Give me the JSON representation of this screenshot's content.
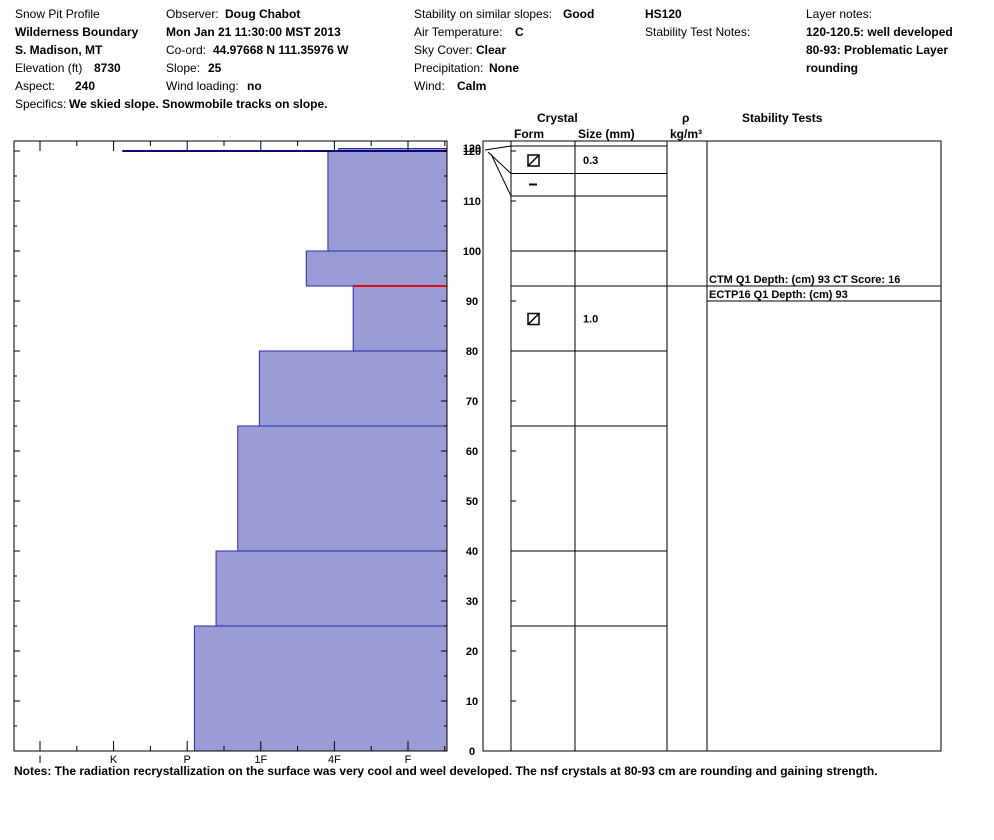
{
  "header": {
    "title": "Snow Pit Profile",
    "location_name": "Wilderness Boundary",
    "region": "S. Madison, MT",
    "elevation_label": "Elevation (ft)",
    "elevation_value": "8730",
    "aspect_label": "Aspect:",
    "aspect_value": "240",
    "specifics_label": "Specifics:",
    "specifics_value": "We skied slope. Snowmobile tracks on slope.",
    "observer_label": "Observer:",
    "observer_value": "Doug Chabot",
    "datetime": "Mon Jan 21 11:30:00 MST 2013",
    "coord_label": "Co-ord:",
    "coord_value": "44.97668 N 111.35976 W",
    "slope_label": "Slope:",
    "slope_value": "25",
    "wind_loading_label": "Wind loading:",
    "wind_loading_value": "no",
    "stability_label": "Stability on similar slopes:",
    "stability_value": "Good",
    "air_temp_label": "Air Temperature:",
    "air_temp_value": "C",
    "sky_label": "Sky Cover:",
    "sky_value": "Clear",
    "precip_label": "Precipitation:",
    "precip_value": "None",
    "wind_label": "Wind:",
    "wind_value": "Calm",
    "hs": "HS120",
    "stability_test_notes_label": "Stability Test Notes:",
    "layer_notes_label": "Layer notes:",
    "layer_notes": [
      "120-120.5: well developed",
      "80-93: Problematic Layer",
      "rounding"
    ]
  },
  "columns": {
    "crystal": "Crystal",
    "form": "Form",
    "size": "Size (mm)",
    "rho": "ρ",
    "density_unit": "kg/m³",
    "stability_tests": "Stability Tests"
  },
  "notes": "Notes:  The radiation recrystallization on the surface was very cool and weel developed.  The nsf crystals at 80-93 cm are rounding and gaining strength.",
  "chart_data": {
    "type": "bar",
    "orientation": "horizontal",
    "description_axis": "hand hardness vs depth",
    "y_axis": {
      "min": 0,
      "max": 120,
      "ticks": [
        0,
        10,
        20,
        30,
        40,
        50,
        60,
        70,
        80,
        90,
        100,
        110,
        120
      ]
    },
    "y_top_label": "120",
    "hardness_ticks": [
      "I",
      "K",
      "P",
      "1F",
      "4F",
      "F"
    ],
    "hardness_scale": "0 = right edge (softest), 6 = left edge (hardest)",
    "layers": [
      {
        "bottom": 120,
        "top": 120.5,
        "hardness": 1.5
      },
      {
        "bottom": 100,
        "top": 120,
        "hardness": 1.65
      },
      {
        "bottom": 93,
        "top": 100,
        "hardness": 1.95
      },
      {
        "bottom": 80,
        "top": 93,
        "hardness": 1.3
      },
      {
        "bottom": 65,
        "top": 80,
        "hardness": 2.6
      },
      {
        "bottom": 40,
        "top": 65,
        "hardness": 2.9
      },
      {
        "bottom": 25,
        "top": 40,
        "hardness": 3.2
      },
      {
        "bottom": 0,
        "top": 25,
        "hardness": 3.5
      }
    ],
    "flat_layer": {
      "depth": 120,
      "hardness": 4.5
    },
    "problem_layer_depth": 93,
    "layer_boundaries": [
      25,
      40,
      65,
      80,
      93,
      100,
      111,
      115.5,
      121
    ],
    "crystals": [
      {
        "depth": 118.2,
        "form": "faceted-rounding-icon",
        "size": "0.3"
      },
      {
        "depth": 113.3,
        "form": "dash-icon",
        "size": ""
      },
      {
        "depth": 86.5,
        "form": "faceted-rounding-icon",
        "size": "1.0"
      }
    ],
    "stability_tests": [
      {
        "depth": 93,
        "text": "CTM Q1 Depth: (cm) 93 CT Score: 16"
      },
      {
        "depth": 93,
        "text": "ECTP16 Q1 Depth: (cm) 93"
      }
    ],
    "colors": {
      "fill": "#9b9bd6",
      "edge": "#2828b4",
      "problem": "#e01010",
      "surface": "#0a0a6e"
    }
  }
}
